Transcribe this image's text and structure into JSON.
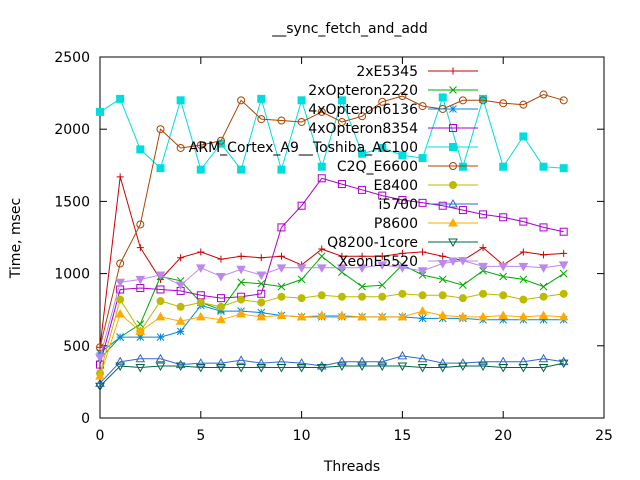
{
  "chart_data": {
    "type": "line",
    "title": "__sync_fetch_and_add",
    "xlabel": "Threads",
    "ylabel": "Time, msec",
    "xlim": [
      0,
      25
    ],
    "ylim": [
      0,
      2500
    ],
    "xticks": [
      "0",
      "5",
      "10",
      "15",
      "20",
      "25"
    ],
    "yticks": [
      "0",
      "500",
      "1000",
      "1500",
      "2000",
      "2500"
    ],
    "grid": false,
    "legend": "top-right",
    "x": [
      0,
      1,
      2,
      3,
      4,
      5,
      6,
      7,
      8,
      9,
      10,
      11,
      12,
      13,
      14,
      15,
      16,
      17,
      18,
      19,
      20,
      21,
      22,
      23
    ],
    "series": [
      {
        "name": "2xE5345",
        "color": "#cc0000",
        "marker": "plus",
        "values": [
          490,
          1670,
          1180,
          960,
          1110,
          1150,
          1100,
          1120,
          1110,
          1120,
          1060,
          1170,
          1120,
          1120,
          1120,
          1140,
          1150,
          1120,
          1090,
          1180,
          1060,
          1150,
          1130,
          1140
        ]
      },
      {
        "name": "2xOpteron2220",
        "color": "#00aa00",
        "marker": "cross",
        "values": [
          410,
          560,
          650,
          980,
          950,
          800,
          750,
          940,
          930,
          910,
          960,
          1120,
          1010,
          910,
          920,
          1060,
          990,
          960,
          920,
          1020,
          980,
          960,
          910,
          1000
        ]
      },
      {
        "name": "4xOpteron6136",
        "color": "#0088dd",
        "marker": "star",
        "values": [
          450,
          560,
          560,
          560,
          600,
          780,
          740,
          740,
          730,
          710,
          700,
          700,
          700,
          700,
          700,
          700,
          690,
          690,
          690,
          680,
          680,
          680,
          680,
          680
        ]
      },
      {
        "name": "4xOpteron8354",
        "color": "#aa00cc",
        "marker": "square",
        "values": [
          370,
          890,
          900,
          890,
          880,
          850,
          830,
          840,
          860,
          1320,
          1470,
          1660,
          1620,
          1580,
          1540,
          1510,
          1490,
          1470,
          1440,
          1410,
          1390,
          1360,
          1320,
          1290
        ]
      },
      {
        "name": "ARM_Cortex_A9__Toshiba_AC100",
        "color": "#00dddd",
        "marker": "filled-square",
        "values": [
          2120,
          2210,
          1860,
          1730,
          2200,
          1720,
          1900,
          1720,
          2210,
          1720,
          2200,
          1740,
          2200,
          1830,
          1870,
          1820,
          1800,
          2220,
          1740,
          2210,
          1740,
          1950,
          1740,
          1730
        ]
      },
      {
        "name": "C2Q_E6600",
        "color": "#aa4400",
        "marker": "circle",
        "values": [
          490,
          1070,
          1340,
          2000,
          1870,
          1890,
          1920,
          2200,
          2070,
          2060,
          2050,
          2120,
          2050,
          2090,
          2190,
          2230,
          2160,
          2140,
          2200,
          2200,
          2180,
          2170,
          2240,
          2200
        ]
      },
      {
        "name": "E8400",
        "color": "#bbbb00",
        "marker": "filled-circle",
        "values": [
          310,
          820,
          600,
          810,
          770,
          800,
          770,
          820,
          800,
          840,
          830,
          850,
          840,
          840,
          840,
          860,
          850,
          850,
          830,
          860,
          850,
          820,
          840,
          860
        ]
      },
      {
        "name": "i5700",
        "color": "#3366cc",
        "marker": "triangle",
        "values": [
          240,
          390,
          410,
          410,
          370,
          380,
          380,
          400,
          380,
          390,
          380,
          360,
          390,
          390,
          390,
          430,
          410,
          380,
          380,
          390,
          390,
          390,
          410,
          390
        ]
      },
      {
        "name": "P8600",
        "color": "#ffaa00",
        "marker": "filled-triangle",
        "values": [
          290,
          720,
          600,
          700,
          670,
          700,
          680,
          720,
          700,
          710,
          700,
          710,
          710,
          700,
          700,
          700,
          740,
          710,
          700,
          700,
          710,
          700,
          710,
          700
        ]
      },
      {
        "name": "Q8200-1core",
        "color": "#006644",
        "marker": "inverted-triangle",
        "values": [
          220,
          360,
          350,
          360,
          360,
          350,
          350,
          350,
          350,
          350,
          350,
          350,
          360,
          360,
          360,
          360,
          350,
          350,
          360,
          360,
          350,
          350,
          350,
          380
        ]
      },
      {
        "name": "XeonE5520",
        "color": "#bb88ee",
        "marker": "filled-inverted-triangle",
        "values": [
          420,
          940,
          960,
          990,
          920,
          1040,
          980,
          1030,
          990,
          1040,
          1040,
          1040,
          1040,
          1040,
          1060,
          1040,
          1020,
          1070,
          1090,
          1050,
          1050,
          1050,
          1040,
          1060
        ]
      }
    ]
  }
}
